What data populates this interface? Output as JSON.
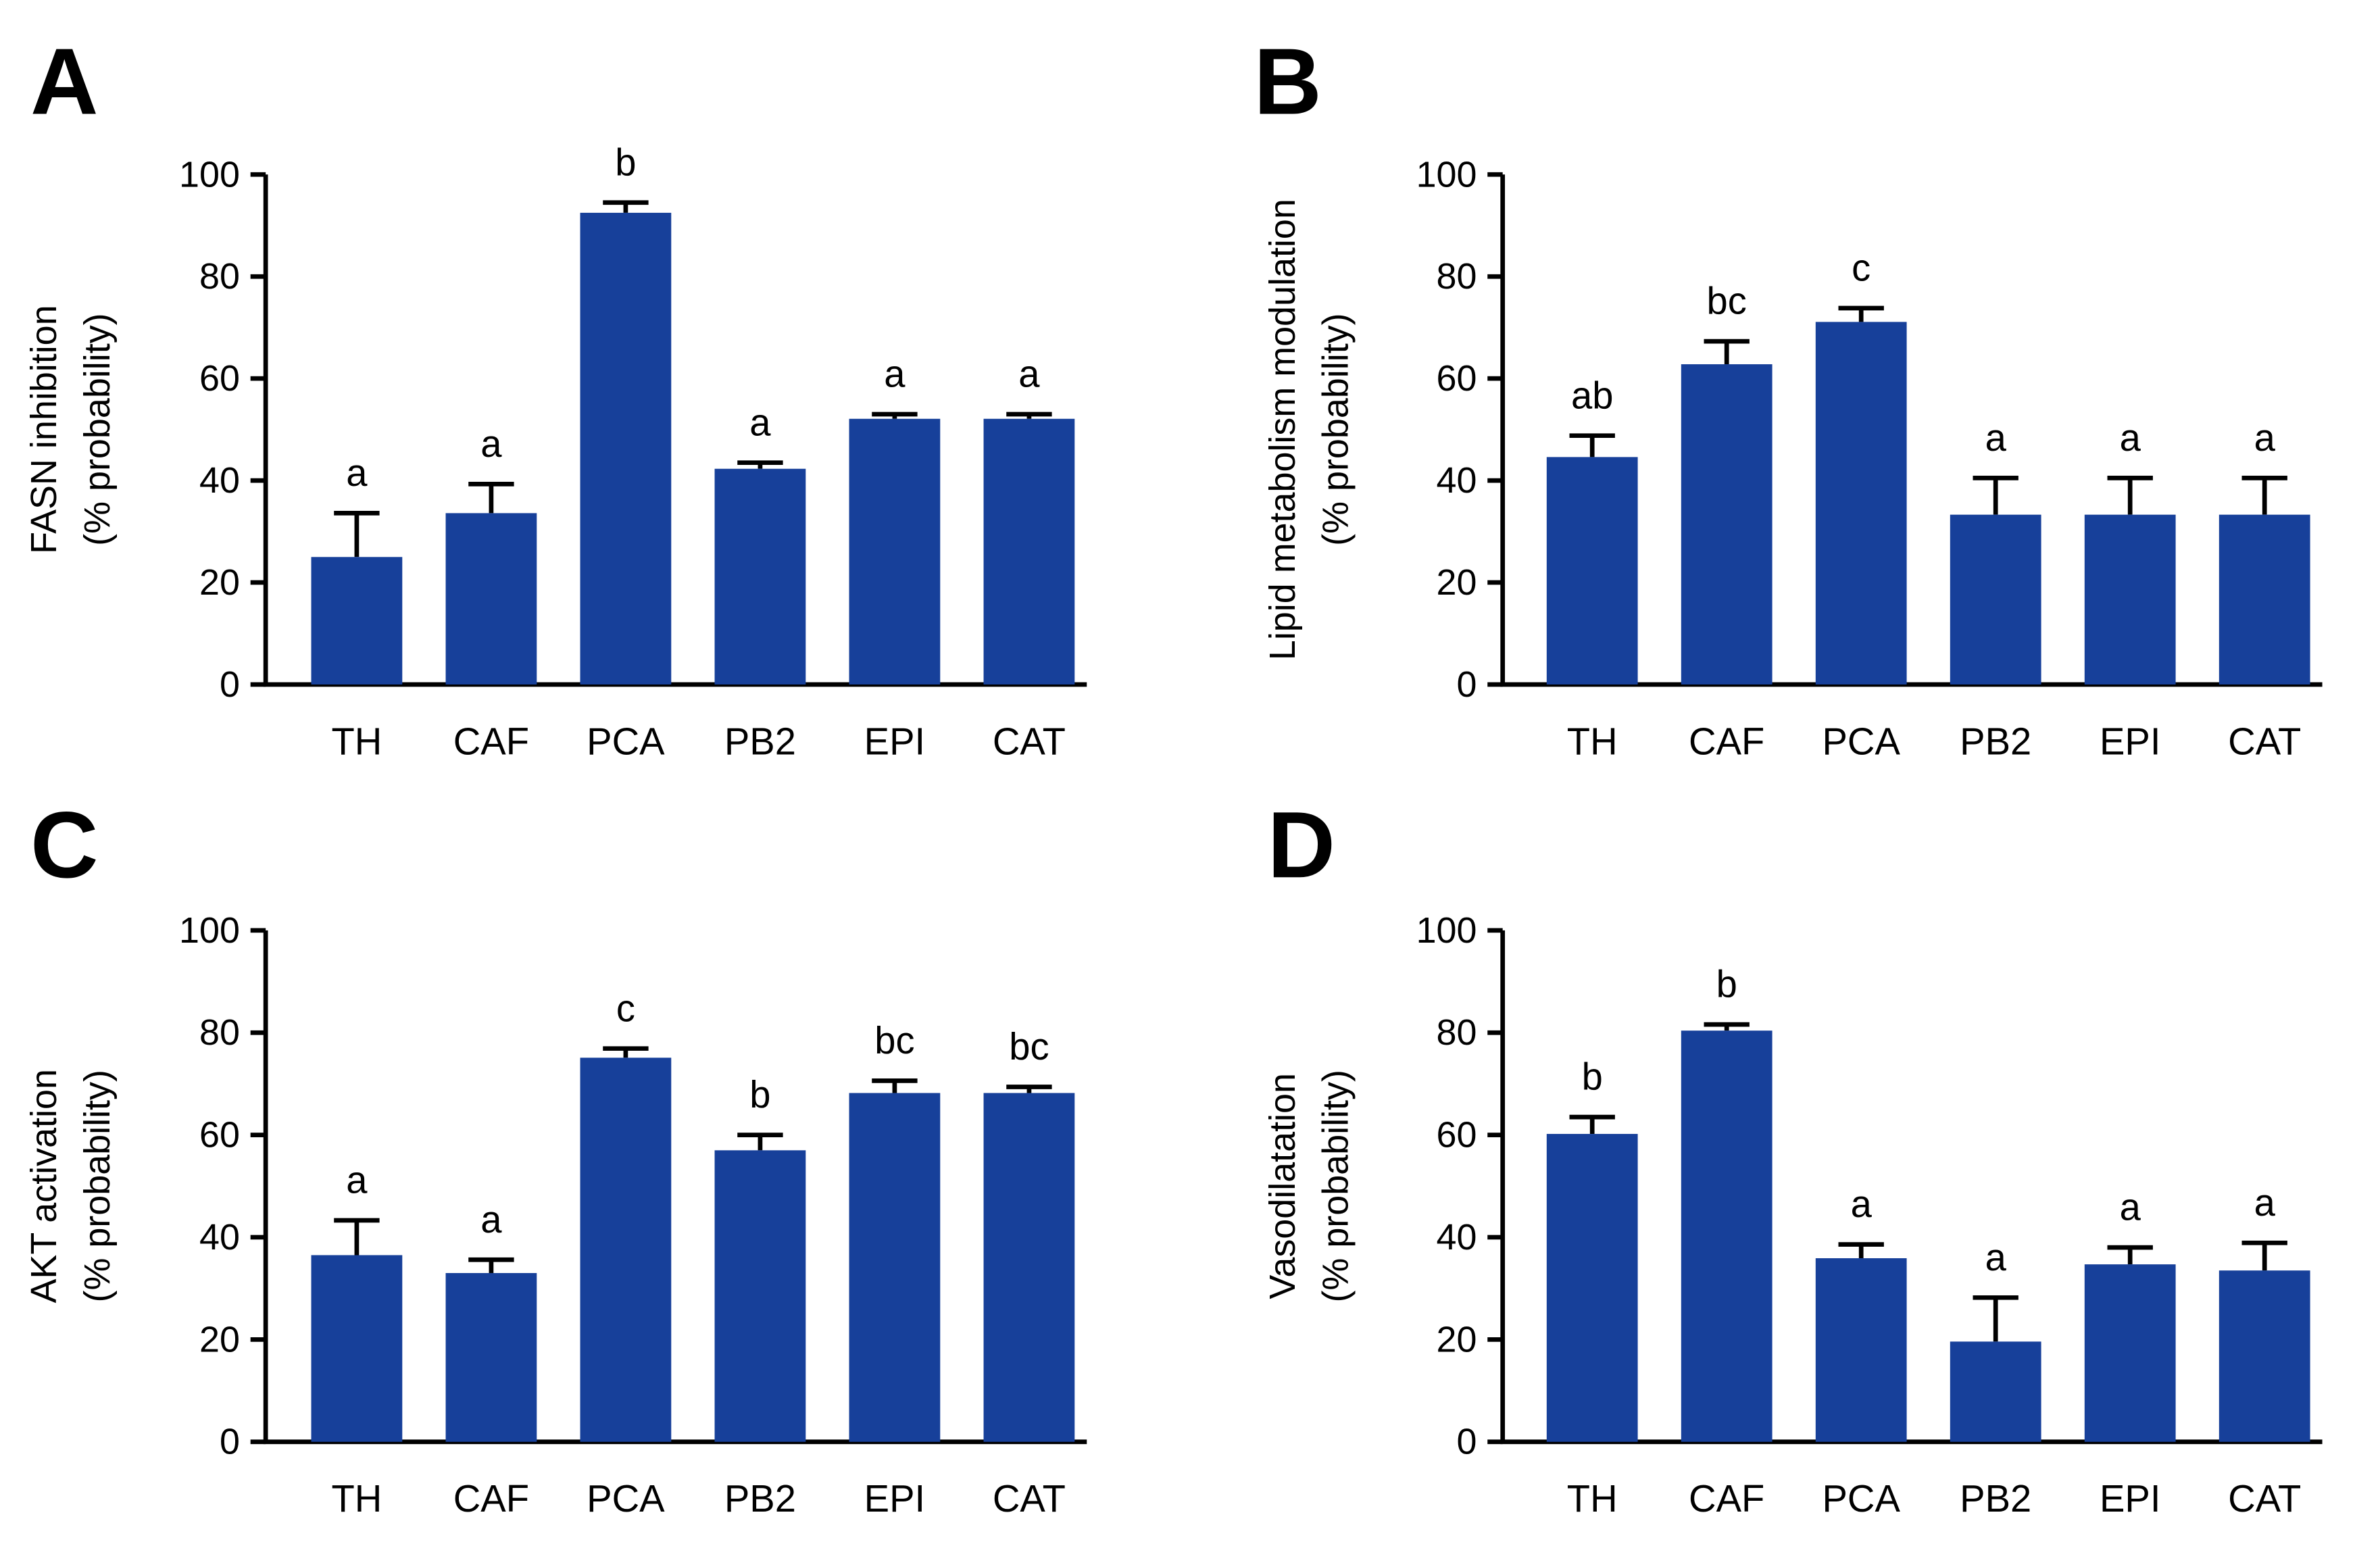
{
  "chart_data": [
    {
      "panel": "A",
      "type": "bar",
      "ylabel": [
        "FASN inhibition",
        "(% probability)"
      ],
      "categories": [
        "TH",
        "CAF",
        "PCA",
        "PB2",
        "EPI",
        "CAT"
      ],
      "values": [
        25,
        33.6,
        92.5,
        42.3,
        52.1,
        52.1
      ],
      "errors": [
        8.6,
        5.7,
        2,
        1.2,
        0.9,
        0.9
      ],
      "letters": [
        "a",
        "a",
        "b",
        "a",
        "a",
        "a"
      ],
      "ylim": [
        0,
        100
      ],
      "yticks": [
        0,
        20,
        40,
        60,
        80,
        100
      ]
    },
    {
      "panel": "B",
      "type": "bar",
      "ylabel": [
        "Lipid metabolism modulation",
        "(% probability)"
      ],
      "categories": [
        "TH",
        "CAF",
        "PCA",
        "PB2",
        "EPI",
        "CAT"
      ],
      "values": [
        44.6,
        62.8,
        71.1,
        33.3,
        33.3,
        33.3
      ],
      "errors": [
        4.2,
        4.5,
        2.7,
        7.2,
        7.2,
        7.2
      ],
      "letters": [
        "ab",
        "bc",
        "c",
        "a",
        "a",
        "a"
      ],
      "ylim": [
        0,
        100
      ],
      "yticks": [
        0,
        20,
        40,
        60,
        80,
        100
      ]
    },
    {
      "panel": "C",
      "type": "bar",
      "ylabel": [
        "AKT activation",
        "(% probability)"
      ],
      "categories": [
        "TH",
        "CAF",
        "PCA",
        "PB2",
        "EPI",
        "CAT"
      ],
      "values": [
        36.5,
        33.0,
        75.1,
        57.0,
        68.2,
        68.2
      ],
      "errors": [
        6.8,
        2.6,
        1.8,
        3.0,
        2.4,
        1.2
      ],
      "letters": [
        "a",
        "a",
        "c",
        "b",
        "bc",
        "bc"
      ],
      "ylim": [
        0,
        100
      ],
      "yticks": [
        0,
        20,
        40,
        60,
        80,
        100
      ]
    },
    {
      "panel": "D",
      "type": "bar",
      "ylabel": [
        "Vasodilatation",
        "(% probability)"
      ],
      "categories": [
        "TH",
        "CAF",
        "PCA",
        "PB2",
        "EPI",
        "CAT"
      ],
      "values": [
        60.2,
        80.4,
        35.9,
        19.6,
        34.7,
        33.5
      ],
      "errors": [
        3.3,
        1.2,
        2.7,
        8.6,
        3.3,
        5.4
      ],
      "letters": [
        "b",
        "b",
        "a",
        "a",
        "a",
        "a"
      ],
      "ylim": [
        0,
        100
      ],
      "yticks": [
        0,
        20,
        40,
        60,
        80,
        100
      ]
    }
  ],
  "colors": {
    "bar": "#17409a",
    "axis": "#000000"
  }
}
